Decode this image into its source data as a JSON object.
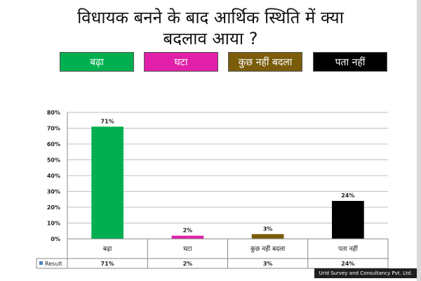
{
  "title": {
    "line1": "विधायक बनने के बाद आर्थिक स्थिति में क्या",
    "line2": "बदलाव आया ?"
  },
  "legend_boxes": [
    {
      "label": "बढ़ा",
      "color": "#00b050"
    },
    {
      "label": "घटा",
      "color": "#e020a8"
    },
    {
      "label": "कुछ नहीं बदला",
      "color": "#7a5c0a"
    },
    {
      "label": "पता नहीं",
      "color": "#000000"
    }
  ],
  "footer": "Urid Survey and Consultancy Pvt. Ltd.",
  "chart_data": {
    "type": "bar",
    "categories": [
      "बढ़ा",
      "घटा",
      "कुछ नहीं बदला",
      "पता नहीं"
    ],
    "series": [
      {
        "name": "Result",
        "values": [
          71,
          2,
          3,
          24
        ],
        "labels": [
          "71%",
          "2%",
          "3%",
          "24%"
        ],
        "colors": [
          "#00b050",
          "#e020a8",
          "#7a5c0a",
          "#000000"
        ]
      }
    ],
    "ylim": [
      0,
      80
    ],
    "yticks": [
      0,
      10,
      20,
      30,
      40,
      50,
      60,
      70,
      80
    ],
    "ytick_labels": [
      "0%",
      "10%",
      "20%",
      "30%",
      "40%",
      "50%",
      "60%",
      "70%",
      "80%"
    ],
    "grid": true,
    "legend": "data-table",
    "legend_marker_color": "#4f81bd"
  }
}
